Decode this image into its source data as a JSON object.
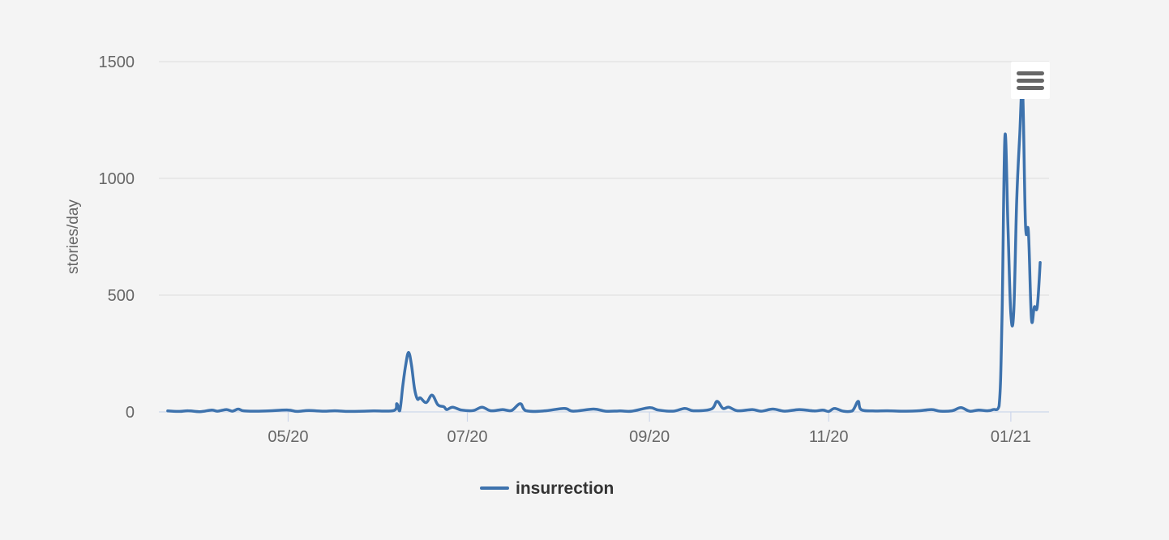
{
  "chart_data": {
    "type": "line",
    "title": "",
    "xlabel": "",
    "ylabel": "stories/day",
    "ylim": [
      0,
      1500
    ],
    "y_ticks": [
      0,
      500,
      1000,
      1500
    ],
    "x_range": [
      "2020-04-06",
      "2021-02-03"
    ],
    "x_tick_labels": [
      {
        "date": "2020-05-20",
        "label": "05/20"
      },
      {
        "date": "2020-07-20",
        "label": "07/20"
      },
      {
        "date": "2020-09-20",
        "label": "09/20"
      },
      {
        "date": "2020-11-20",
        "label": "11/20"
      },
      {
        "date": "2021-01-21",
        "label": "01/21"
      }
    ],
    "grid": true,
    "legend_position": "bottom-center",
    "colors": {
      "series": "#3d72ad",
      "background": "#f4f4f4"
    },
    "series": [
      {
        "name": "insurrection",
        "points": [
          [
            "2020-04-09",
            4
          ],
          [
            "2020-04-13",
            2
          ],
          [
            "2020-04-16",
            5
          ],
          [
            "2020-04-20",
            1
          ],
          [
            "2020-04-24",
            8
          ],
          [
            "2020-04-26",
            3
          ],
          [
            "2020-04-29",
            10
          ],
          [
            "2020-05-01",
            3
          ],
          [
            "2020-05-03",
            12
          ],
          [
            "2020-05-05",
            4
          ],
          [
            "2020-05-10",
            3
          ],
          [
            "2020-05-14",
            5
          ],
          [
            "2020-05-20",
            8
          ],
          [
            "2020-05-23",
            2
          ],
          [
            "2020-05-27",
            6
          ],
          [
            "2020-06-01",
            3
          ],
          [
            "2020-06-05",
            5
          ],
          [
            "2020-06-10",
            2
          ],
          [
            "2020-06-18",
            4
          ],
          [
            "2020-06-25",
            6
          ],
          [
            "2020-06-26",
            35
          ],
          [
            "2020-06-27",
            5
          ],
          [
            "2020-06-28",
            110
          ],
          [
            "2020-06-29",
            200
          ],
          [
            "2020-06-30",
            255
          ],
          [
            "2020-07-01",
            200
          ],
          [
            "2020-07-02",
            100
          ],
          [
            "2020-07-03",
            55
          ],
          [
            "2020-07-04",
            60
          ],
          [
            "2020-07-06",
            40
          ],
          [
            "2020-07-08",
            72
          ],
          [
            "2020-07-10",
            30
          ],
          [
            "2020-07-12",
            22
          ],
          [
            "2020-07-13",
            10
          ],
          [
            "2020-07-15",
            20
          ],
          [
            "2020-07-18",
            8
          ],
          [
            "2020-07-22",
            6
          ],
          [
            "2020-07-25",
            20
          ],
          [
            "2020-07-28",
            5
          ],
          [
            "2020-08-01",
            10
          ],
          [
            "2020-08-04",
            6
          ],
          [
            "2020-08-07",
            35
          ],
          [
            "2020-08-09",
            5
          ],
          [
            "2020-08-15",
            4
          ],
          [
            "2020-08-22",
            15
          ],
          [
            "2020-08-25",
            3
          ],
          [
            "2020-09-01",
            12
          ],
          [
            "2020-09-05",
            3
          ],
          [
            "2020-09-10",
            4
          ],
          [
            "2020-09-14",
            3
          ],
          [
            "2020-09-20",
            18
          ],
          [
            "2020-09-23",
            8
          ],
          [
            "2020-09-28",
            3
          ],
          [
            "2020-10-02",
            15
          ],
          [
            "2020-10-05",
            5
          ],
          [
            "2020-10-11",
            12
          ],
          [
            "2020-10-13",
            45
          ],
          [
            "2020-10-15",
            15
          ],
          [
            "2020-10-17",
            20
          ],
          [
            "2020-10-20",
            5
          ],
          [
            "2020-10-25",
            10
          ],
          [
            "2020-10-28",
            3
          ],
          [
            "2020-11-01",
            12
          ],
          [
            "2020-11-05",
            3
          ],
          [
            "2020-11-10",
            10
          ],
          [
            "2020-11-15",
            4
          ],
          [
            "2020-11-18",
            8
          ],
          [
            "2020-11-20",
            2
          ],
          [
            "2020-11-22",
            15
          ],
          [
            "2020-11-25",
            3
          ],
          [
            "2020-11-28",
            4
          ],
          [
            "2020-11-30",
            45
          ],
          [
            "2020-12-01",
            10
          ],
          [
            "2020-12-05",
            4
          ],
          [
            "2020-12-10",
            5
          ],
          [
            "2020-12-15",
            3
          ],
          [
            "2020-12-20",
            4
          ],
          [
            "2020-12-25",
            10
          ],
          [
            "2020-12-28",
            3
          ],
          [
            "2021-01-01",
            5
          ],
          [
            "2021-01-04",
            18
          ],
          [
            "2021-01-07",
            3
          ],
          [
            "2021-01-10",
            8
          ],
          [
            "2021-01-13",
            5
          ],
          [
            "2021-01-15",
            10
          ],
          [
            "2021-01-17",
            25
          ],
          [
            "2021-01-18",
            400
          ],
          [
            "2021-01-19",
            1180
          ],
          [
            "2021-01-20",
            800
          ],
          [
            "2021-01-21",
            420
          ],
          [
            "2021-01-22",
            430
          ],
          [
            "2021-01-23",
            900
          ],
          [
            "2021-01-24",
            1180
          ],
          [
            "2021-01-25",
            1380
          ],
          [
            "2021-01-26",
            800
          ],
          [
            "2021-01-27",
            770
          ],
          [
            "2021-01-28",
            400
          ],
          [
            "2021-01-29",
            450
          ],
          [
            "2021-01-30",
            450
          ],
          [
            "2021-01-31",
            640
          ]
        ]
      }
    ]
  },
  "legend": {
    "items": [
      {
        "label": "insurrection",
        "color": "#3d72ad"
      }
    ]
  },
  "menu": {
    "icon": "hamburger-menu-icon"
  }
}
